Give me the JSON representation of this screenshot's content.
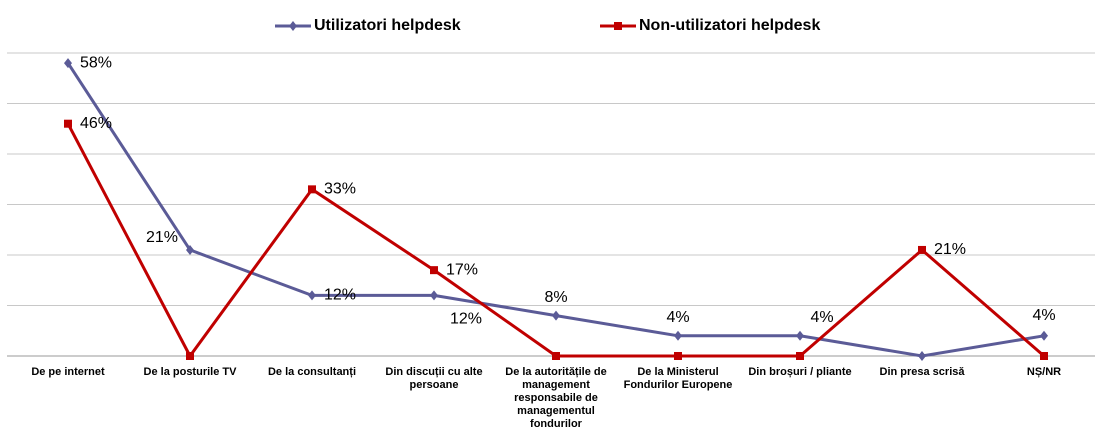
{
  "chart_data": {
    "type": "line",
    "categories": [
      "De pe internet",
      "De la posturile TV",
      "De la consultanți",
      "Din discuții cu alte persoane",
      "De la autoritățile de management responsabile de managementul fondurilor",
      "De la Ministerul Fondurilor Europene",
      "Din broșuri / pliante",
      "Din presa scrisă",
      "NȘ/NR"
    ],
    "series": [
      {
        "name": "Utilizatori helpdesk",
        "color": "#5b5b97",
        "marker": "diamond",
        "values": [
          58,
          21,
          12,
          12,
          8,
          4,
          4,
          0,
          4
        ],
        "value_labels": [
          "58%",
          "21%",
          "12%",
          "12%",
          "8%",
          "4%",
          "4%",
          null,
          "4%"
        ]
      },
      {
        "name": "Non-utilizatori helpdesk",
        "color": "#c00000",
        "marker": "square",
        "values": [
          46,
          0,
          33,
          17,
          0,
          0,
          0,
          21,
          0
        ],
        "value_labels": [
          "46%",
          null,
          "33%",
          "17%",
          null,
          null,
          null,
          "21%",
          null
        ]
      }
    ],
    "ylim": [
      0,
      60
    ],
    "yticks": [
      0,
      10,
      20,
      30,
      40,
      50,
      60
    ],
    "grid": true,
    "legend": "top"
  }
}
